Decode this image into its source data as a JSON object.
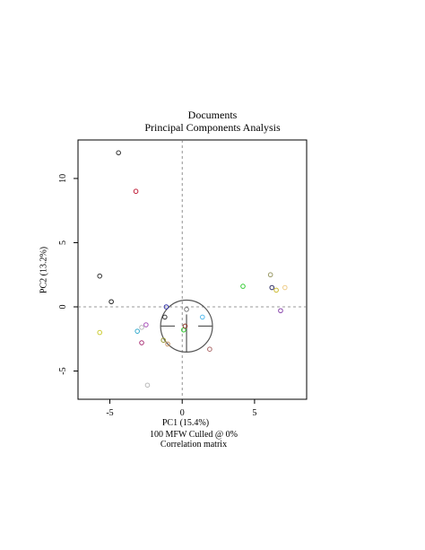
{
  "chart_data": {
    "type": "scatter",
    "title": "Documents",
    "subtitle": "Principal Components Analysis",
    "xlabel": "PC1 (15.4%)",
    "ylabel": "PC2 (13.2%)",
    "caption_line1": "100 MFW  Culled @ 0%",
    "caption_line2": "Correlation matrix",
    "xlim": [
      -7.2,
      8.6
    ],
    "ylim": [
      -7.2,
      13.0
    ],
    "xticks": [
      -5,
      0,
      5
    ],
    "yticks": [
      -5,
      0,
      5,
      10
    ],
    "grid": false,
    "reference_lines": {
      "x": 0,
      "y": 0,
      "style": "dashed"
    },
    "correlation_circle": {
      "center": [
        0.3,
        -1.5
      ],
      "radius": 1.9
    },
    "points": [
      {
        "x": -4.4,
        "y": 12.0,
        "color": "#333333"
      },
      {
        "x": -3.2,
        "y": 9.0,
        "color": "#c0203a"
      },
      {
        "x": -5.7,
        "y": 2.4,
        "color": "#333333"
      },
      {
        "x": -4.9,
        "y": 0.4,
        "color": "#222222"
      },
      {
        "x": -5.7,
        "y": -2.0,
        "color": "#cccc33"
      },
      {
        "x": -3.1,
        "y": -1.9,
        "color": "#33aacc"
      },
      {
        "x": -2.8,
        "y": -1.6,
        "color": "#bbbbbb"
      },
      {
        "x": -2.5,
        "y": -1.4,
        "color": "#aa55bb"
      },
      {
        "x": -2.8,
        "y": -2.8,
        "color": "#aa3377"
      },
      {
        "x": -1.1,
        "y": 0.0,
        "color": "#3333aa"
      },
      {
        "x": -1.2,
        "y": -0.8,
        "color": "#333333"
      },
      {
        "x": -1.3,
        "y": -2.6,
        "color": "#999933"
      },
      {
        "x": -1.0,
        "y": -2.9,
        "color": "#cc9966"
      },
      {
        "x": 0.1,
        "y": -1.8,
        "color": "#33cc33"
      },
      {
        "x": 0.2,
        "y": -1.5,
        "color": "#883322"
      },
      {
        "x": 0.3,
        "y": -0.2,
        "color": "#777777"
      },
      {
        "x": 1.4,
        "y": -0.8,
        "color": "#55bbee"
      },
      {
        "x": 1.9,
        "y": -3.3,
        "color": "#aa6666"
      },
      {
        "x": -2.4,
        "y": -6.1,
        "color": "#bbbbbb"
      },
      {
        "x": 4.2,
        "y": 1.6,
        "color": "#33cc33"
      },
      {
        "x": 6.1,
        "y": 2.5,
        "color": "#999966"
      },
      {
        "x": 6.2,
        "y": 1.5,
        "color": "#333366"
      },
      {
        "x": 6.5,
        "y": 1.3,
        "color": "#ccbb33"
      },
      {
        "x": 7.1,
        "y": 1.5,
        "color": "#eecc88"
      },
      {
        "x": 6.8,
        "y": -0.3,
        "color": "#8844aa"
      }
    ]
  }
}
